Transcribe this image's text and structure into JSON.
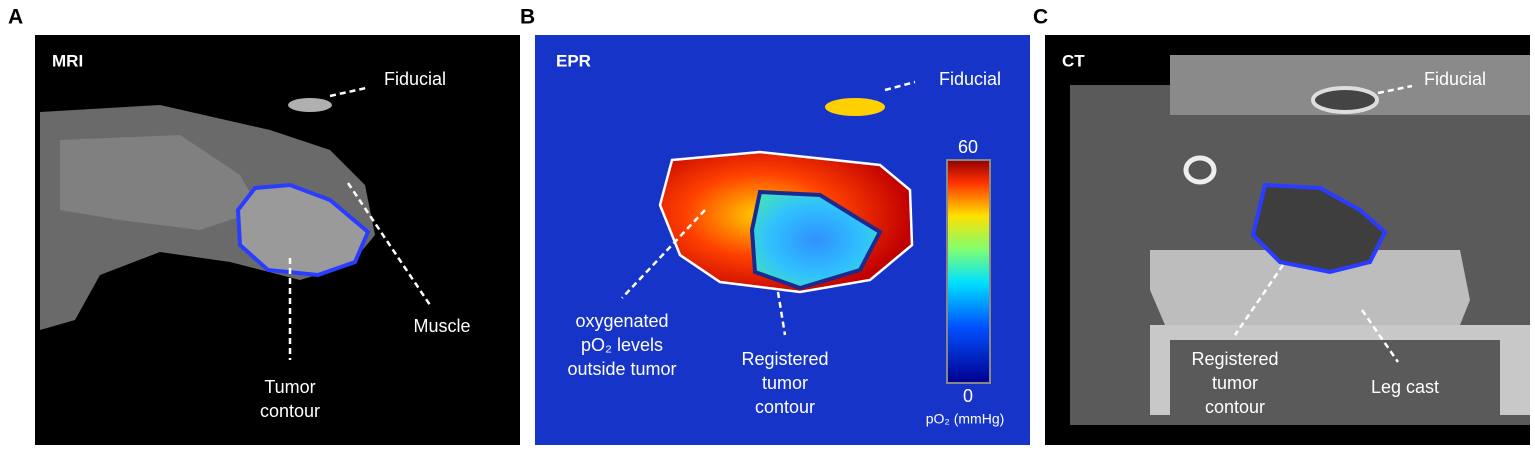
{
  "panels": [
    {
      "letter": "A",
      "modality": "MRI",
      "annotations": [
        {
          "lines": [
            "Fiducial"
          ]
        },
        {
          "lines": [
            "Muscle"
          ]
        },
        {
          "lines": [
            "Tumor",
            "contour"
          ]
        }
      ]
    },
    {
      "letter": "B",
      "modality": "EPR",
      "annotations": [
        {
          "lines": [
            "Fiducial"
          ]
        },
        {
          "lines": [
            "oxygenated",
            "pO₂ levels",
            "outside tumor"
          ]
        },
        {
          "lines": [
            "Registered",
            "tumor",
            "contour"
          ]
        }
      ]
    },
    {
      "letter": "C",
      "modality": "CT",
      "annotations": [
        {
          "lines": [
            "Fiducial"
          ]
        },
        {
          "lines": [
            "Registered",
            "tumor",
            "contour"
          ]
        },
        {
          "lines": [
            "Leg cast"
          ]
        }
      ]
    }
  ],
  "colorbar": {
    "ticks": [
      0,
      60
    ],
    "label": "pO₂ (mmHg)"
  }
}
